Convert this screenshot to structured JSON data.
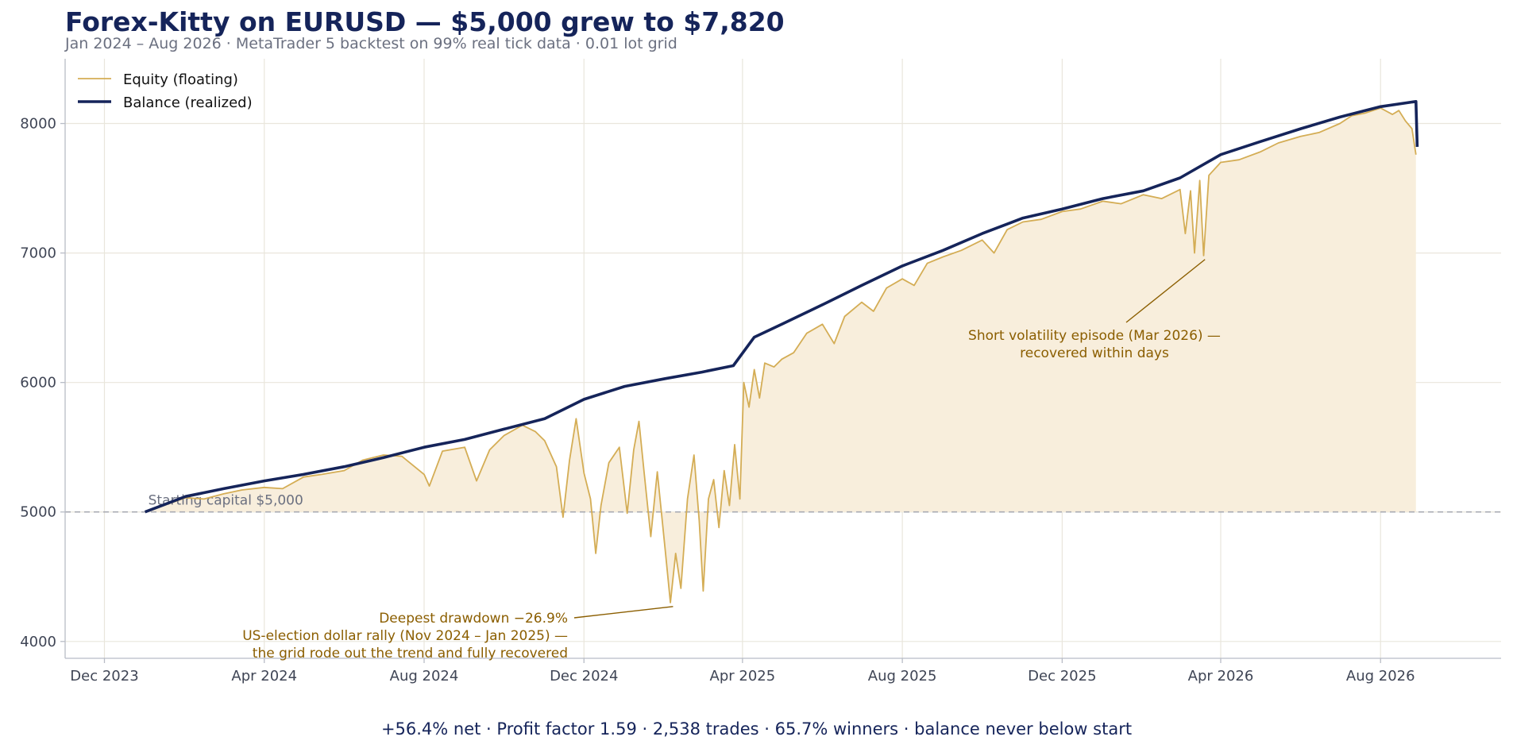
{
  "chart_data": {
    "type": "line",
    "title": "Forex-Kitty on EURUSD — $5,000 grew to $7,820",
    "subtitle": "Jan 2024 – Aug 2026  ·  MetaTrader 5 backtest on 99% real tick data  ·  0.01 lot grid",
    "x_range": [
      "2023-11",
      "2026-11"
    ],
    "ylim": [
      3870,
      8500
    ],
    "grid": true,
    "legend_position": "top-left",
    "y_ticks": [
      4000,
      5000,
      6000,
      7000,
      8000
    ],
    "x_ticks": [
      {
        "label": "Dec 2023",
        "date": "2023-12-01"
      },
      {
        "label": "Apr 2024",
        "date": "2024-04-01"
      },
      {
        "label": "Aug 2024",
        "date": "2024-08-01"
      },
      {
        "label": "Dec 2024",
        "date": "2024-12-01"
      },
      {
        "label": "Apr 2025",
        "date": "2025-04-01"
      },
      {
        "label": "Aug 2025",
        "date": "2025-08-01"
      },
      {
        "label": "Dec 2025",
        "date": "2025-12-01"
      },
      {
        "label": "Apr 2026",
        "date": "2026-04-01"
      },
      {
        "label": "Aug 2026",
        "date": "2026-08-01"
      }
    ],
    "series": [
      {
        "name": "Equity (floating)",
        "color": "#d4ad55",
        "fill": "#f8eedc",
        "points": [
          [
            "2024-01-01",
            5000
          ],
          [
            "2024-01-15",
            5050
          ],
          [
            "2024-02-01",
            5110
          ],
          [
            "2024-02-15",
            5100
          ],
          [
            "2024-03-01",
            5140
          ],
          [
            "2024-03-15",
            5170
          ],
          [
            "2024-04-01",
            5190
          ],
          [
            "2024-04-15",
            5180
          ],
          [
            "2024-05-01",
            5270
          ],
          [
            "2024-05-15",
            5290
          ],
          [
            "2024-06-01",
            5320
          ],
          [
            "2024-06-15",
            5400
          ],
          [
            "2024-07-01",
            5440
          ],
          [
            "2024-07-15",
            5430
          ],
          [
            "2024-08-01",
            5290
          ],
          [
            "2024-08-05",
            5200
          ],
          [
            "2024-08-15",
            5470
          ],
          [
            "2024-09-01",
            5500
          ],
          [
            "2024-09-10",
            5240
          ],
          [
            "2024-09-20",
            5480
          ],
          [
            "2024-10-01",
            5590
          ],
          [
            "2024-10-15",
            5670
          ],
          [
            "2024-10-25",
            5620
          ],
          [
            "2024-11-01",
            5550
          ],
          [
            "2024-11-10",
            5350
          ],
          [
            "2024-11-15",
            4960
          ],
          [
            "2024-11-20",
            5400
          ],
          [
            "2024-11-25",
            5720
          ],
          [
            "2024-12-01",
            5300
          ],
          [
            "2024-12-06",
            5100
          ],
          [
            "2024-12-10",
            4680
          ],
          [
            "2024-12-14",
            5050
          ],
          [
            "2024-12-20",
            5380
          ],
          [
            "2024-12-28",
            5500
          ],
          [
            "2025-01-03",
            4990
          ],
          [
            "2025-01-08",
            5480
          ],
          [
            "2025-01-12",
            5700
          ],
          [
            "2025-01-16",
            5300
          ],
          [
            "2025-01-21",
            4810
          ],
          [
            "2025-01-26",
            5310
          ],
          [
            "2025-02-01",
            4710
          ],
          [
            "2025-02-05",
            4300
          ],
          [
            "2025-02-09",
            4680
          ],
          [
            "2025-02-13",
            4410
          ],
          [
            "2025-02-18",
            5100
          ],
          [
            "2025-02-23",
            5440
          ],
          [
            "2025-02-27",
            4930
          ],
          [
            "2025-03-02",
            4390
          ],
          [
            "2025-03-06",
            5100
          ],
          [
            "2025-03-10",
            5250
          ],
          [
            "2025-03-14",
            4880
          ],
          [
            "2025-03-18",
            5320
          ],
          [
            "2025-03-22",
            5050
          ],
          [
            "2025-03-26",
            5520
          ],
          [
            "2025-03-30",
            5100
          ],
          [
            "2025-04-02",
            6000
          ],
          [
            "2025-04-06",
            5810
          ],
          [
            "2025-04-10",
            6100
          ],
          [
            "2025-04-14",
            5880
          ],
          [
            "2025-04-18",
            6150
          ],
          [
            "2025-04-25",
            6120
          ],
          [
            "2025-05-01",
            6180
          ],
          [
            "2025-05-10",
            6230
          ],
          [
            "2025-05-20",
            6380
          ],
          [
            "2025-06-01",
            6450
          ],
          [
            "2025-06-10",
            6300
          ],
          [
            "2025-06-18",
            6510
          ],
          [
            "2025-07-01",
            6620
          ],
          [
            "2025-07-10",
            6550
          ],
          [
            "2025-07-20",
            6730
          ],
          [
            "2025-08-01",
            6800
          ],
          [
            "2025-08-10",
            6750
          ],
          [
            "2025-08-20",
            6920
          ],
          [
            "2025-09-01",
            6970
          ],
          [
            "2025-09-15",
            7020
          ],
          [
            "2025-10-01",
            7100
          ],
          [
            "2025-10-10",
            7000
          ],
          [
            "2025-10-20",
            7180
          ],
          [
            "2025-11-01",
            7240
          ],
          [
            "2025-11-15",
            7260
          ],
          [
            "2025-12-01",
            7320
          ],
          [
            "2025-12-15",
            7340
          ],
          [
            "2026-01-01",
            7400
          ],
          [
            "2026-01-15",
            7380
          ],
          [
            "2026-02-01",
            7450
          ],
          [
            "2026-02-15",
            7420
          ],
          [
            "2026-03-01",
            7490
          ],
          [
            "2026-03-05",
            7150
          ],
          [
            "2026-03-09",
            7480
          ],
          [
            "2026-03-12",
            7000
          ],
          [
            "2026-03-16",
            7560
          ],
          [
            "2026-03-19",
            6980
          ],
          [
            "2026-03-23",
            7600
          ],
          [
            "2026-04-01",
            7700
          ],
          [
            "2026-04-15",
            7720
          ],
          [
            "2026-05-01",
            7780
          ],
          [
            "2026-05-15",
            7850
          ],
          [
            "2026-06-01",
            7900
          ],
          [
            "2026-06-15",
            7930
          ],
          [
            "2026-07-01",
            8000
          ],
          [
            "2026-07-10",
            8060
          ],
          [
            "2026-07-20",
            8080
          ],
          [
            "2026-08-01",
            8120
          ],
          [
            "2026-08-10",
            8070
          ],
          [
            "2026-08-15",
            8100
          ],
          [
            "2026-08-20",
            8020
          ],
          [
            "2026-08-25",
            7960
          ],
          [
            "2026-08-28",
            7760
          ]
        ]
      },
      {
        "name": "Balance (realized)",
        "color": "#15245a",
        "points": [
          [
            "2024-01-01",
            5000
          ],
          [
            "2024-02-01",
            5120
          ],
          [
            "2024-03-01",
            5180
          ],
          [
            "2024-04-01",
            5240
          ],
          [
            "2024-05-01",
            5290
          ],
          [
            "2024-06-01",
            5350
          ],
          [
            "2024-07-01",
            5420
          ],
          [
            "2024-08-01",
            5500
          ],
          [
            "2024-09-01",
            5560
          ],
          [
            "2024-10-01",
            5640
          ],
          [
            "2024-11-01",
            5720
          ],
          [
            "2024-12-01",
            5870
          ],
          [
            "2025-01-01",
            5970
          ],
          [
            "2025-02-01",
            6030
          ],
          [
            "2025-03-01",
            6080
          ],
          [
            "2025-03-25",
            6130
          ],
          [
            "2025-04-10",
            6350
          ],
          [
            "2025-05-01",
            6450
          ],
          [
            "2025-06-01",
            6600
          ],
          [
            "2025-07-01",
            6750
          ],
          [
            "2025-08-01",
            6900
          ],
          [
            "2025-09-01",
            7020
          ],
          [
            "2025-10-01",
            7150
          ],
          [
            "2025-11-01",
            7270
          ],
          [
            "2025-12-01",
            7340
          ],
          [
            "2026-01-01",
            7420
          ],
          [
            "2026-02-01",
            7480
          ],
          [
            "2026-03-01",
            7580
          ],
          [
            "2026-04-01",
            7760
          ],
          [
            "2026-05-01",
            7860
          ],
          [
            "2026-06-01",
            7960
          ],
          [
            "2026-07-01",
            8050
          ],
          [
            "2026-08-01",
            8130
          ],
          [
            "2026-08-28",
            8170
          ],
          [
            "2026-08-29",
            7820
          ]
        ]
      }
    ],
    "reference_line": {
      "y": 5000,
      "label": "Starting capital $5,000"
    },
    "annotations": [
      {
        "name": "drawdown",
        "lines": [
          "Deepest drawdown −26.9%",
          "US-election dollar rally (Nov 2024 – Jan 2025) —",
          "the grid rode out the trend and fully recovered"
        ],
        "anchor_x": "2025-02-07",
        "anchor_y": 4270,
        "align": "right"
      },
      {
        "name": "volatility",
        "lines": [
          "Short volatility episode (Mar 2026) —",
          "recovered within days"
        ],
        "anchor_x": "2026-03-20",
        "anchor_y": 6950,
        "align": "center"
      }
    ]
  },
  "footer": "+56.4% net   ·   Profit factor 1.59   ·   2,538 trades   ·   65.7% winners   ·   balance never below start"
}
